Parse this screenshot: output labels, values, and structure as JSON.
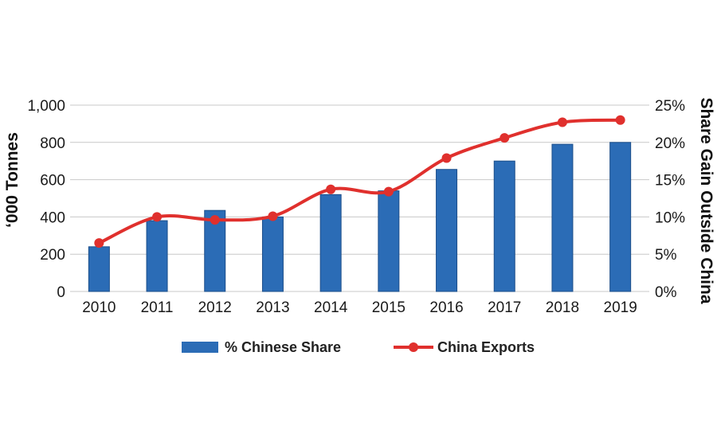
{
  "chart_data": {
    "type": "bar+line",
    "categories": [
      "2010",
      "2011",
      "2012",
      "2013",
      "2014",
      "2015",
      "2016",
      "2017",
      "2018",
      "2019"
    ],
    "series": [
      {
        "name": "% Chinese Share",
        "type": "bar",
        "axis": "left",
        "color": "#2b6cb6",
        "values": [
          240,
          380,
          435,
          400,
          520,
          540,
          655,
          700,
          790,
          800
        ]
      },
      {
        "name": "China Exports",
        "type": "line",
        "axis": "right",
        "color": "#e0302d",
        "values": [
          6.5,
          10.0,
          9.6,
          10.1,
          13.7,
          13.4,
          17.9,
          20.6,
          22.7,
          23.0
        ]
      }
    ],
    "y_left": {
      "label": "‘000 Tonnes",
      "min": 0,
      "max": 1000,
      "ticks": [
        0,
        200,
        400,
        600,
        800,
        1000
      ],
      "tick_labels": [
        "0",
        "200",
        "400",
        "600",
        "800",
        "1,000"
      ]
    },
    "y_right": {
      "label": "Share Gain Outside China",
      "min": 0,
      "max": 25,
      "ticks": [
        0,
        5,
        10,
        15,
        20,
        25
      ],
      "tick_labels": [
        "0%",
        "5%",
        "10%",
        "15%",
        "20%",
        "25%"
      ]
    },
    "grid": true,
    "legend_position": "bottom"
  }
}
